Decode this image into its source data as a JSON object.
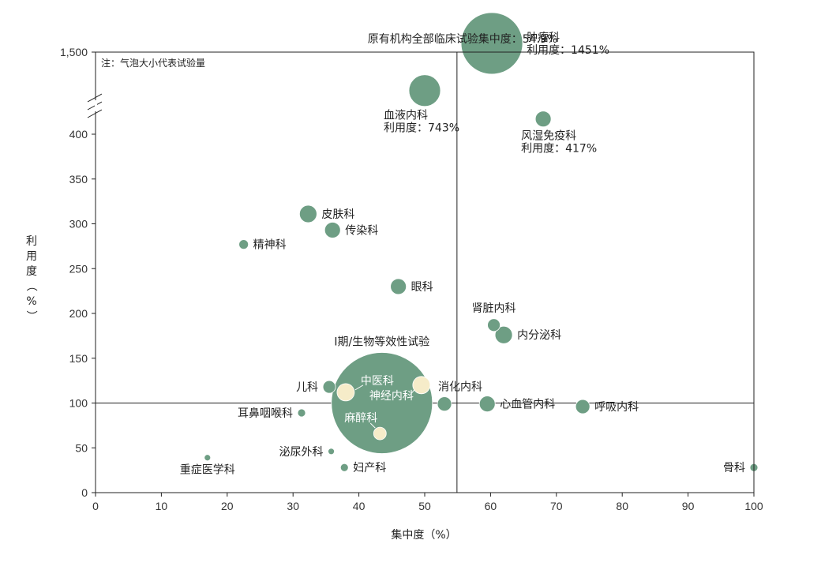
{
  "colors": {
    "bubble": "#6e9e84",
    "highlight": "#f6ecc9",
    "axis": "#222222",
    "ref_line": "#222222"
  },
  "chart_data": {
    "type": "scatter",
    "subtype": "bubble",
    "xlabel": "集中度（%）",
    "ylabel": "利用度（%）",
    "xlim": [
      0,
      100
    ],
    "ylim": [
      0,
      420
    ],
    "y_break": {
      "from": 420,
      "to": 1500,
      "top_label": "1,500"
    },
    "xticks": [
      "0",
      "10",
      "20",
      "30",
      "40",
      "50",
      "60",
      "70",
      "80",
      "90",
      "100"
    ],
    "yticks": [
      "0",
      "50",
      "100",
      "150",
      "200",
      "250",
      "300",
      "350",
      "400"
    ],
    "note": "注：气泡大小代表试验量",
    "vline": {
      "x": 54.9,
      "label": "原有机构全部临床试验集中度：54.9%"
    },
    "hline": {
      "y": 100
    },
    "grid": false,
    "points": [
      {
        "name": "肿瘤科",
        "note": "利用度：1451%",
        "x": 60.2,
        "y": 1451,
        "r": 39,
        "color": "bubble",
        "label_pos": "right"
      },
      {
        "name": "血液内科",
        "note": "利用度：743%",
        "x": 50.0,
        "y": 743,
        "r": 20,
        "color": "bubble",
        "label_pos": "below-left"
      },
      {
        "name": "风湿免疫科",
        "note": "利用度：417%",
        "x": 68.0,
        "y": 417,
        "r": 10,
        "color": "bubble",
        "label_pos": "below"
      },
      {
        "name": "皮肤科",
        "x": 32.3,
        "y": 311,
        "r": 11,
        "color": "bubble",
        "label_pos": "right"
      },
      {
        "name": "传染科",
        "x": 36.0,
        "y": 293,
        "r": 10,
        "color": "bubble",
        "label_pos": "right"
      },
      {
        "name": "精神科",
        "x": 22.5,
        "y": 277,
        "r": 6,
        "color": "bubble",
        "label_pos": "right"
      },
      {
        "name": "眼科",
        "x": 46.0,
        "y": 230,
        "r": 10,
        "color": "bubble",
        "label_pos": "right"
      },
      {
        "name": "肾脏内科",
        "x": 60.5,
        "y": 187,
        "r": 8,
        "color": "bubble",
        "label_pos": "above"
      },
      {
        "name": "内分泌科",
        "x": 62.0,
        "y": 176,
        "r": 11,
        "color": "bubble",
        "label_pos": "right"
      },
      {
        "name": "I期/生物等效性试验",
        "x": 43.5,
        "y": 100,
        "r": 64,
        "color": "bubble",
        "label_pos": "above"
      },
      {
        "name": "儿科",
        "x": 35.5,
        "y": 118,
        "r": 8,
        "color": "bubble",
        "label_pos": "left"
      },
      {
        "name": "中医科",
        "x": 38.0,
        "y": 112,
        "r": 11,
        "color": "highlight",
        "label_pos": "inside"
      },
      {
        "name": "神经内科",
        "x": 49.5,
        "y": 120,
        "r": 11,
        "color": "highlight",
        "label_pos": "inside"
      },
      {
        "name": "麻醉科",
        "x": 43.2,
        "y": 66,
        "r": 8,
        "color": "highlight",
        "label_pos": "inside"
      },
      {
        "name": "消化内科",
        "x": 53.0,
        "y": 99,
        "r": 9,
        "color": "bubble",
        "label_pos": "above-right"
      },
      {
        "name": "心血管内科",
        "x": 59.5,
        "y": 99,
        "r": 10,
        "color": "bubble",
        "label_pos": "right"
      },
      {
        "name": "呼吸内科",
        "x": 74.0,
        "y": 96,
        "r": 9,
        "color": "bubble",
        "label_pos": "right"
      },
      {
        "name": "耳鼻咽喉科",
        "x": 31.3,
        "y": 89,
        "r": 5,
        "color": "bubble",
        "label_pos": "left"
      },
      {
        "name": "泌尿外科",
        "x": 35.8,
        "y": 46,
        "r": 4,
        "color": "bubble",
        "label_pos": "left"
      },
      {
        "name": "妇产科",
        "x": 37.8,
        "y": 28,
        "r": 5,
        "color": "bubble",
        "label_pos": "right"
      },
      {
        "name": "重症医学科",
        "x": 17.0,
        "y": 39,
        "r": 4,
        "color": "bubble",
        "label_pos": "below"
      },
      {
        "name": "骨科",
        "x": 100.0,
        "y": 28,
        "r": 5,
        "color": "bubble",
        "label_pos": "left"
      }
    ]
  }
}
